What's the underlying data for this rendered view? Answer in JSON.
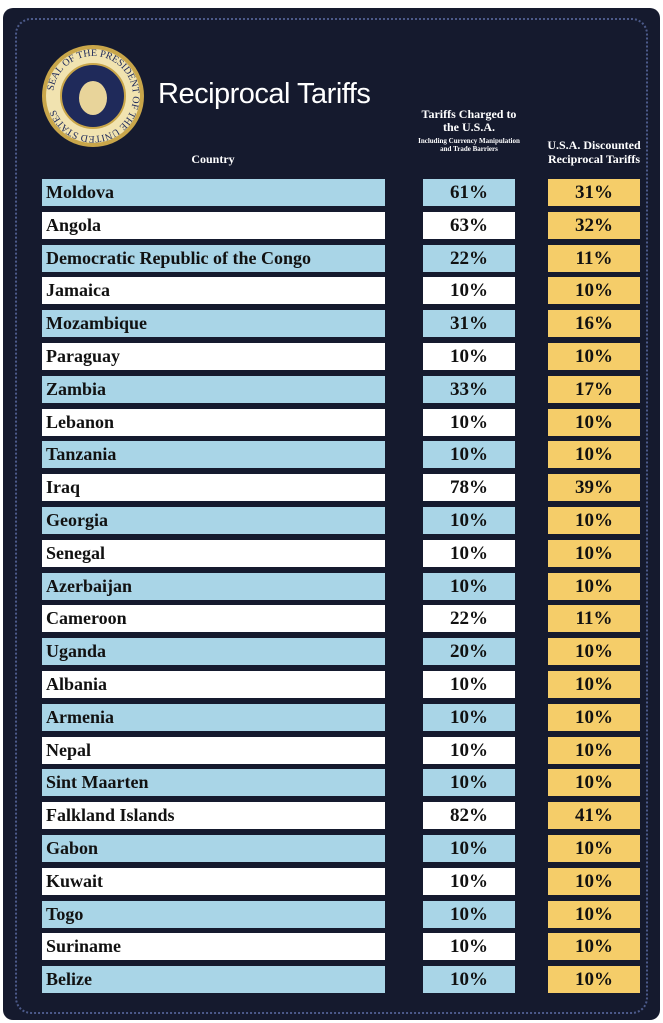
{
  "header": {
    "seal": "SEAL OF THE PRESIDENT OF THE UNITED STATES",
    "title": "Reciprocal Tariffs"
  },
  "table": {
    "columns": [
      {
        "label": "Country"
      },
      {
        "label": "Tariffs Charged to the U.S.A.",
        "note": "Including Currency Manipulation and Trade Barriers"
      },
      {
        "label": "U.S.A. Discounted Reciprocal Tariffs"
      }
    ],
    "rows": [
      [
        "Moldova",
        "61%",
        "31%"
      ],
      [
        "Angola",
        "63%",
        "32%"
      ],
      [
        "Democratic Republic of the Congo",
        "22%",
        "11%"
      ],
      [
        "Jamaica",
        "10%",
        "10%"
      ],
      [
        "Mozambique",
        "31%",
        "16%"
      ],
      [
        "Paraguay",
        "10%",
        "10%"
      ],
      [
        "Zambia",
        "33%",
        "17%"
      ],
      [
        "Lebanon",
        "10%",
        "10%"
      ],
      [
        "Tanzania",
        "10%",
        "10%"
      ],
      [
        "Iraq",
        "78%",
        "39%"
      ],
      [
        "Georgia",
        "10%",
        "10%"
      ],
      [
        "Senegal",
        "10%",
        "10%"
      ],
      [
        "Azerbaijan",
        "10%",
        "10%"
      ],
      [
        "Cameroon",
        "22%",
        "11%"
      ],
      [
        "Uganda",
        "20%",
        "10%"
      ],
      [
        "Albania",
        "10%",
        "10%"
      ],
      [
        "Armenia",
        "10%",
        "10%"
      ],
      [
        "Nepal",
        "10%",
        "10%"
      ],
      [
        "Sint Maarten",
        "10%",
        "10%"
      ],
      [
        "Falkland Islands",
        "82%",
        "41%"
      ],
      [
        "Gabon",
        "10%",
        "10%"
      ],
      [
        "Kuwait",
        "10%",
        "10%"
      ],
      [
        "Togo",
        "10%",
        "10%"
      ],
      [
        "Suriname",
        "10%",
        "10%"
      ],
      [
        "Belize",
        "10%",
        "10%"
      ]
    ]
  }
}
